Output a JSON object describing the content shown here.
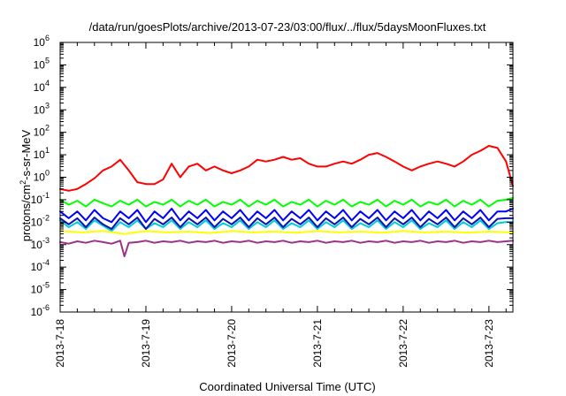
{
  "chart_data": {
    "type": "line",
    "title": "/data/run/goesPlots/archive/2013-07-23/03:00/flux/../flux/5daysMoonFluxes.txt",
    "xlabel": "Coordinated Universal Time (UTC)",
    "ylabel_base": "protons/cm",
    "ylabel_sup": "2",
    "ylabel_rest": "-s-sr-MeV",
    "x_tick_labels": [
      "2013-7-18",
      "2013-7-19",
      "2013-7-20",
      "2013-7-21",
      "2013-7-22",
      "2013-7-23"
    ],
    "y_scale": "log",
    "y_tick_base": "10",
    "y_tick_exponents": [
      "-6",
      "-5",
      "-4",
      "-3",
      "-2",
      "-1",
      "0",
      "1",
      "2",
      "3",
      "4",
      "5",
      "6"
    ],
    "ylim": [
      1e-06,
      1000000
    ],
    "xlim_days": [
      0,
      5.28
    ],
    "grid": false,
    "series": [
      {
        "color": "#ff0000",
        "x": [
          0,
          0.1,
          0.2,
          0.3,
          0.4,
          0.5,
          0.6,
          0.7,
          0.8,
          0.9,
          1.0,
          1.1,
          1.2,
          1.3,
          1.4,
          1.5,
          1.6,
          1.7,
          1.8,
          1.9,
          2.0,
          2.1,
          2.2,
          2.3,
          2.4,
          2.5,
          2.6,
          2.7,
          2.8,
          2.9,
          3.0,
          3.1,
          3.2,
          3.3,
          3.4,
          3.5,
          3.6,
          3.7,
          3.8,
          3.9,
          4.0,
          4.1,
          4.2,
          4.3,
          4.4,
          4.5,
          4.6,
          4.7,
          4.8,
          4.9,
          5.0,
          5.1,
          5.2,
          5.28
        ],
        "y": [
          0.3,
          0.25,
          0.3,
          0.5,
          0.9,
          2,
          3,
          6,
          2,
          0.6,
          0.5,
          0.5,
          0.8,
          4,
          1,
          3,
          4,
          2,
          3,
          2,
          1.5,
          2,
          3,
          6,
          5,
          6,
          8,
          6,
          7,
          4,
          3,
          3,
          4,
          5,
          4,
          6,
          10,
          12,
          8,
          5,
          3,
          2,
          3,
          4,
          5,
          4,
          3,
          5,
          10,
          15,
          25,
          20,
          5,
          0.4
        ]
      },
      {
        "color": "#00ff00",
        "x": [
          0,
          0.1,
          0.2,
          0.3,
          0.4,
          0.5,
          0.6,
          0.7,
          0.8,
          0.9,
          1.0,
          1.1,
          1.2,
          1.3,
          1.4,
          1.5,
          1.6,
          1.7,
          1.8,
          1.9,
          2.0,
          2.1,
          2.2,
          2.3,
          2.4,
          2.5,
          2.6,
          2.7,
          2.8,
          2.9,
          3.0,
          3.1,
          3.2,
          3.3,
          3.4,
          3.5,
          3.6,
          3.7,
          3.8,
          3.9,
          4.0,
          4.1,
          4.2,
          4.3,
          4.4,
          4.5,
          4.6,
          4.7,
          4.8,
          4.9,
          5.0,
          5.1,
          5.2,
          5.28
        ],
        "y": [
          0.1,
          0.06,
          0.09,
          0.05,
          0.1,
          0.07,
          0.05,
          0.09,
          0.06,
          0.1,
          0.05,
          0.08,
          0.06,
          0.1,
          0.05,
          0.09,
          0.06,
          0.1,
          0.05,
          0.08,
          0.06,
          0.1,
          0.05,
          0.09,
          0.06,
          0.1,
          0.05,
          0.08,
          0.06,
          0.1,
          0.05,
          0.09,
          0.06,
          0.1,
          0.05,
          0.08,
          0.06,
          0.1,
          0.05,
          0.09,
          0.06,
          0.1,
          0.05,
          0.08,
          0.06,
          0.1,
          0.05,
          0.09,
          0.06,
          0.1,
          0.05,
          0.09,
          0.1,
          0.12
        ]
      },
      {
        "color": "#00ccdd",
        "x": [
          0,
          0.1,
          0.2,
          0.3,
          0.4,
          0.5,
          0.6,
          0.7,
          0.8,
          0.9,
          1.0,
          1.1,
          1.2,
          1.3,
          1.4,
          1.5,
          1.6,
          1.7,
          1.8,
          1.9,
          2.0,
          2.1,
          2.2,
          2.3,
          2.4,
          2.5,
          2.6,
          2.7,
          2.8,
          2.9,
          3.0,
          3.1,
          3.2,
          3.3,
          3.4,
          3.5,
          3.6,
          3.7,
          3.8,
          3.9,
          4.0,
          4.1,
          4.2,
          4.3,
          4.4,
          4.5,
          4.6,
          4.7,
          4.8,
          4.9,
          5.0,
          5.1,
          5.2,
          5.28
        ],
        "y": [
          0.012,
          0.006,
          0.01,
          0.005,
          0.012,
          0.007,
          0.004,
          0.01,
          0.006,
          0.012,
          0.005,
          0.009,
          0.006,
          0.012,
          0.005,
          0.01,
          0.006,
          0.012,
          0.005,
          0.009,
          0.006,
          0.012,
          0.005,
          0.01,
          0.006,
          0.012,
          0.005,
          0.009,
          0.006,
          0.012,
          0.005,
          0.01,
          0.006,
          0.012,
          0.005,
          0.009,
          0.006,
          0.012,
          0.005,
          0.01,
          0.006,
          0.012,
          0.005,
          0.009,
          0.006,
          0.012,
          0.005,
          0.01,
          0.006,
          0.012,
          0.005,
          0.009,
          0.01,
          0.01
        ]
      },
      {
        "color": "#0000ff",
        "x": [
          0,
          0.1,
          0.2,
          0.3,
          0.4,
          0.5,
          0.6,
          0.7,
          0.8,
          0.9,
          1.0,
          1.1,
          1.2,
          1.3,
          1.4,
          1.5,
          1.6,
          1.7,
          1.8,
          1.9,
          2.0,
          2.1,
          2.2,
          2.3,
          2.4,
          2.5,
          2.6,
          2.7,
          2.8,
          2.9,
          3.0,
          3.1,
          3.2,
          3.3,
          3.4,
          3.5,
          3.6,
          3.7,
          3.8,
          3.9,
          4.0,
          4.1,
          4.2,
          4.3,
          4.4,
          4.5,
          4.6,
          4.7,
          4.8,
          4.9,
          5.0,
          5.1,
          5.2,
          5.28
        ],
        "y": [
          0.03,
          0.015,
          0.03,
          0.012,
          0.035,
          0.015,
          0.01,
          0.03,
          0.015,
          0.035,
          0.01,
          0.03,
          0.015,
          0.04,
          0.012,
          0.03,
          0.015,
          0.035,
          0.012,
          0.03,
          0.015,
          0.035,
          0.012,
          0.03,
          0.015,
          0.035,
          0.012,
          0.03,
          0.015,
          0.035,
          0.012,
          0.03,
          0.015,
          0.035,
          0.012,
          0.03,
          0.015,
          0.035,
          0.012,
          0.03,
          0.015,
          0.035,
          0.012,
          0.03,
          0.015,
          0.035,
          0.012,
          0.03,
          0.015,
          0.035,
          0.012,
          0.03,
          0.03,
          0.04
        ]
      },
      {
        "color": "#1010aa",
        "x": [
          0,
          0.1,
          0.2,
          0.3,
          0.4,
          0.5,
          0.6,
          0.7,
          0.8,
          0.9,
          1.0,
          1.1,
          1.2,
          1.3,
          1.4,
          1.5,
          1.6,
          1.7,
          1.8,
          1.9,
          2.0,
          2.1,
          2.2,
          2.3,
          2.4,
          2.5,
          2.6,
          2.7,
          2.8,
          2.9,
          3.0,
          3.1,
          3.2,
          3.3,
          3.4,
          3.5,
          3.6,
          3.7,
          3.8,
          3.9,
          4.0,
          4.1,
          4.2,
          4.3,
          4.4,
          4.5,
          4.6,
          4.7,
          4.8,
          4.9,
          5.0,
          5.1,
          5.2,
          5.28
        ],
        "y": [
          0.015,
          0.008,
          0.015,
          0.006,
          0.016,
          0.008,
          0.005,
          0.015,
          0.008,
          0.016,
          0.005,
          0.014,
          0.008,
          0.016,
          0.006,
          0.015,
          0.008,
          0.016,
          0.006,
          0.014,
          0.008,
          0.016,
          0.006,
          0.015,
          0.008,
          0.016,
          0.006,
          0.014,
          0.008,
          0.016,
          0.006,
          0.015,
          0.008,
          0.016,
          0.006,
          0.014,
          0.008,
          0.016,
          0.006,
          0.015,
          0.008,
          0.016,
          0.006,
          0.014,
          0.008,
          0.016,
          0.006,
          0.015,
          0.008,
          0.016,
          0.006,
          0.014,
          0.015,
          0.015
        ]
      },
      {
        "color": "#ffff00",
        "x": [
          0,
          0.25,
          0.5,
          0.75,
          1.0,
          1.25,
          1.5,
          1.75,
          2.0,
          2.25,
          2.5,
          2.75,
          3.0,
          3.25,
          3.5,
          3.75,
          4.0,
          4.25,
          4.5,
          4.75,
          5.0,
          5.28
        ],
        "y": [
          0.004,
          0.0035,
          0.004,
          0.003,
          0.004,
          0.0035,
          0.0038,
          0.0033,
          0.004,
          0.0035,
          0.0038,
          0.0034,
          0.004,
          0.0035,
          0.0038,
          0.0034,
          0.004,
          0.0035,
          0.0038,
          0.0034,
          0.0038,
          0.0035
        ]
      },
      {
        "color": "#993388",
        "x": [
          0,
          0.1,
          0.2,
          0.3,
          0.4,
          0.5,
          0.6,
          0.7,
          0.75,
          0.8,
          0.9,
          1.0,
          1.1,
          1.2,
          1.3,
          1.4,
          1.5,
          1.6,
          1.7,
          1.8,
          1.9,
          2.0,
          2.1,
          2.2,
          2.3,
          2.4,
          2.5,
          2.6,
          2.7,
          2.8,
          2.9,
          3.0,
          3.1,
          3.2,
          3.3,
          3.4,
          3.5,
          3.6,
          3.7,
          3.8,
          3.9,
          4.0,
          4.1,
          4.2,
          4.3,
          4.4,
          4.5,
          4.6,
          4.7,
          4.8,
          4.9,
          5.0,
          5.1,
          5.2,
          5.28
        ],
        "y": [
          0.0013,
          0.0011,
          0.0014,
          0.0012,
          0.0015,
          0.0013,
          0.0011,
          0.0015,
          0.0003,
          0.0012,
          0.0013,
          0.0015,
          0.0012,
          0.0014,
          0.0013,
          0.0015,
          0.0012,
          0.0014,
          0.0013,
          0.0015,
          0.0012,
          0.0014,
          0.0013,
          0.0015,
          0.0012,
          0.0014,
          0.0013,
          0.0015,
          0.0012,
          0.0014,
          0.0013,
          0.0015,
          0.0012,
          0.0014,
          0.0013,
          0.0015,
          0.0012,
          0.0014,
          0.0013,
          0.0015,
          0.0012,
          0.0014,
          0.0013,
          0.0015,
          0.0012,
          0.0014,
          0.0013,
          0.0015,
          0.0012,
          0.0014,
          0.0013,
          0.0015,
          0.0013,
          0.0014,
          0.0015
        ]
      }
    ]
  }
}
